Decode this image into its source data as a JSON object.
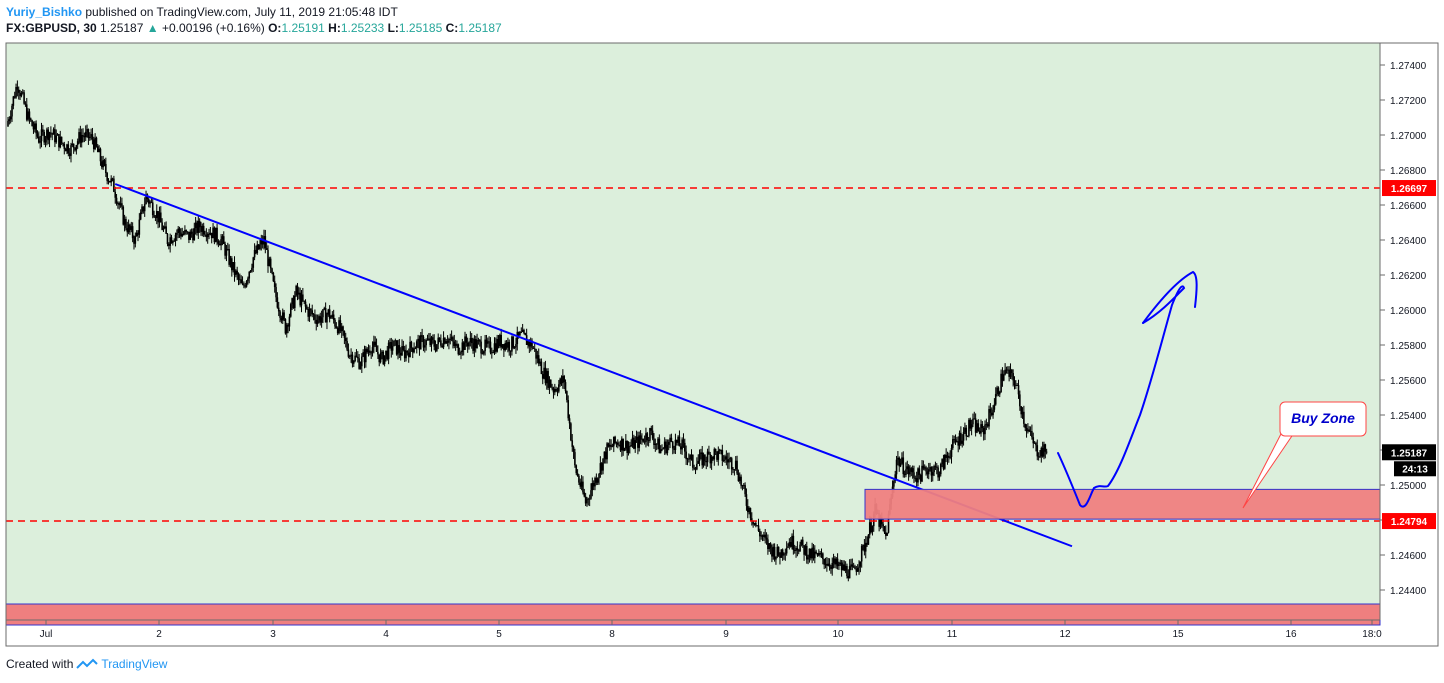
{
  "header": {
    "author": "Yuriy_Bishko",
    "published": "published on TradingView.com, July 11, 2019 21:05:48 IDT",
    "symbol": "FX:GBPUSD, 30",
    "last": "1.25187",
    "change": "+0.00196 (+0.16%)",
    "o_label": "O:",
    "o_val": "1.25191",
    "h_label": "H:",
    "h_val": "1.25233",
    "l_label": "L:",
    "l_val": "1.25185",
    "c_label": "C:",
    "c_val": "1.25187"
  },
  "footer": {
    "created": "Created with",
    "brand": "TradingView"
  },
  "colors": {
    "background": "#dcefdc",
    "trendline": "#0000ff",
    "dashed": "#ff0000",
    "zone_fill": "#ef7f7f",
    "zone_border": "#3333cc",
    "candle": "#000000"
  },
  "chart_data": {
    "type": "candlestick",
    "price_ticks": [
      "1.27400",
      "1.27200",
      "1.27000",
      "1.26800",
      "1.26600",
      "1.26400",
      "1.26200",
      "1.26000",
      "1.25800",
      "1.25600",
      "1.25400",
      "1.25200",
      "1.25000",
      "1.24800",
      "1.24600",
      "1.24400"
    ],
    "time_ticks": [
      "Jul",
      "2",
      "3",
      "4",
      "5",
      "8",
      "9",
      "10",
      "11",
      "12",
      "15",
      "16",
      "18:0"
    ],
    "ylim": [
      1.2425,
      1.2755
    ],
    "horizontal_levels": [
      {
        "price": 1.26697,
        "label": "1.26697",
        "style": "dashed"
      },
      {
        "price": 1.24794,
        "label": "1.24794",
        "style": "dashed"
      }
    ],
    "last_price": {
      "label": "1.25187",
      "countdown": "24:13"
    },
    "annotation": "Buy Zone",
    "buy_zone": {
      "top": 1.24975,
      "bottom": 1.24805
    },
    "bottom_zone": {
      "top": 1.2432,
      "bottom": 1.242
    },
    "price_path": [
      [
        0,
        1.2705
      ],
      [
        1,
        1.273
      ],
      [
        2,
        1.271
      ],
      [
        3,
        1.2698
      ],
      [
        4,
        1.2702
      ],
      [
        5,
        1.2696
      ],
      [
        6,
        1.2692
      ],
      [
        7,
        1.27
      ],
      [
        8,
        1.2698
      ],
      [
        9,
        1.2682
      ],
      [
        10,
        1.267
      ],
      [
        11,
        1.265
      ],
      [
        12,
        1.264
      ],
      [
        13,
        1.2665
      ],
      [
        14,
        1.2655
      ],
      [
        15,
        1.264
      ],
      [
        16,
        1.2645
      ],
      [
        17,
        1.2642
      ],
      [
        18,
        1.2648
      ],
      [
        19,
        1.2645
      ],
      [
        20,
        1.264
      ],
      [
        21,
        1.2625
      ],
      [
        22,
        1.2612
      ],
      [
        23,
        1.263
      ],
      [
        24,
        1.264
      ],
      [
        25,
        1.261
      ],
      [
        26,
        1.259
      ],
      [
        27,
        1.261
      ],
      [
        28,
        1.26
      ],
      [
        29,
        1.2595
      ],
      [
        30,
        1.2598
      ],
      [
        31,
        1.259
      ],
      [
        32,
        1.2575
      ],
      [
        33,
        1.257
      ],
      [
        34,
        1.258
      ],
      [
        35,
        1.2572
      ],
      [
        36,
        1.258
      ],
      [
        37,
        1.2575
      ],
      [
        38,
        1.258
      ],
      [
        39,
        1.2582
      ],
      [
        40,
        1.258
      ],
      [
        41,
        1.2585
      ],
      [
        42,
        1.2578
      ],
      [
        43,
        1.2582
      ],
      [
        44,
        1.258
      ],
      [
        45,
        1.2578
      ],
      [
        46,
        1.2582
      ],
      [
        47,
        1.258
      ],
      [
        48,
        1.2585
      ],
      [
        49,
        1.258
      ],
      [
        50,
        1.2565
      ],
      [
        51,
        1.2555
      ],
      [
        52,
        1.256
      ],
      [
        53,
        1.251
      ],
      [
        54,
        1.249
      ],
      [
        55,
        1.2505
      ],
      [
        56,
        1.252
      ],
      [
        57,
        1.2525
      ],
      [
        58,
        1.2522
      ],
      [
        59,
        1.2525
      ],
      [
        60,
        1.253
      ],
      [
        61,
        1.252
      ],
      [
        62,
        1.2525
      ],
      [
        63,
        1.2522
      ],
      [
        64,
        1.2512
      ],
      [
        65,
        1.2515
      ],
      [
        66,
        1.2518
      ],
      [
        67,
        1.2515
      ],
      [
        68,
        1.2512
      ],
      [
        69,
        1.249
      ],
      [
        70,
        1.2475
      ],
      [
        71,
        1.2465
      ],
      [
        72,
        1.246
      ],
      [
        73,
        1.2468
      ],
      [
        74,
        1.2465
      ],
      [
        75,
        1.246
      ],
      [
        76,
        1.2458
      ],
      [
        77,
        1.2455
      ],
      [
        78,
        1.2452
      ],
      [
        79,
        1.245
      ],
      [
        80,
        1.2465
      ],
      [
        81,
        1.2485
      ],
      [
        82,
        1.247
      ],
      [
        83,
        1.2515
      ],
      [
        84,
        1.2508
      ],
      [
        85,
        1.2505
      ],
      [
        86,
        1.251
      ],
      [
        87,
        1.2508
      ],
      [
        88,
        1.252
      ],
      [
        89,
        1.2528
      ],
      [
        90,
        1.2535
      ],
      [
        91,
        1.253
      ],
      [
        92,
        1.2545
      ],
      [
        93,
        1.2565
      ],
      [
        94,
        1.256
      ],
      [
        95,
        1.2535
      ],
      [
        96,
        1.252
      ],
      [
        97,
        1.25187
      ]
    ],
    "trendline": {
      "from": [
        10,
        1.2672
      ],
      "to": [
        97,
        1.2465
      ]
    }
  }
}
